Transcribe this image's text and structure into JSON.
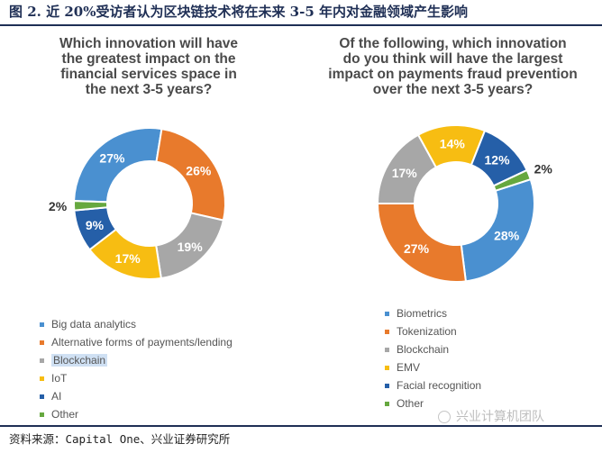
{
  "figure": {
    "title": "图 2.  近 20%受访者认为区块链技术将在未来 3-5 年内对金融领域产生影响",
    "source": "资料来源：Capital One、兴业证券研究所",
    "watermark": "兴业计算机团队"
  },
  "colors": {
    "title": "#1f2f55",
    "blue_light": "#4a90d0",
    "orange": "#e87a2c",
    "gray": "#a7a7a7",
    "yellow": "#f7bd12",
    "blue_dark": "#255fa8",
    "green": "#66a83f"
  },
  "chart_data": [
    {
      "type": "pie",
      "donut": true,
      "title_lines": [
        "Which innovation will have",
        "the greatest impact on the",
        "financial services space in",
        "the next 3-5 years?"
      ],
      "slices": [
        {
          "label": "Big data analytics",
          "value": 27,
          "display": "27%",
          "color": "#4a90d0",
          "label_color": "#ffffff",
          "highlight": false
        },
        {
          "label": "Alternative forms of payments/lending",
          "value": 26,
          "display": "26%",
          "color": "#e87a2c",
          "label_color": "#ffffff",
          "highlight": false
        },
        {
          "label": "Blockchain",
          "value": 19,
          "display": "19%",
          "color": "#a7a7a7",
          "label_color": "#ffffff",
          "highlight": true
        },
        {
          "label": "IoT",
          "value": 17,
          "display": "17%",
          "color": "#f7bd12",
          "label_color": "#ffffff",
          "highlight": false
        },
        {
          "label": "AI",
          "value": 9,
          "display": "9%",
          "color": "#255fa8",
          "label_color": "#ffffff",
          "highlight": false
        },
        {
          "label": "Other",
          "value": 2,
          "display": "2%",
          "color": "#66a83f",
          "label_color": "#333333",
          "highlight": false
        }
      ]
    },
    {
      "type": "pie",
      "donut": true,
      "title_lines": [
        "Of the following, which innovation",
        "do you think will have the largest",
        "impact on payments fraud prevention",
        "over the next 3-5 years?"
      ],
      "slices": [
        {
          "label": "Biometrics",
          "value": 28,
          "display": "28%",
          "color": "#4a90d0",
          "label_color": "#ffffff",
          "highlight": false
        },
        {
          "label": "Tokenization",
          "value": 27,
          "display": "27%",
          "color": "#e87a2c",
          "label_color": "#ffffff",
          "highlight": false
        },
        {
          "label": "Blockchain",
          "value": 17,
          "display": "17%",
          "color": "#a7a7a7",
          "label_color": "#ffffff",
          "highlight": false
        },
        {
          "label": "EMV",
          "value": 14,
          "display": "14%",
          "color": "#f7bd12",
          "label_color": "#ffffff",
          "highlight": false
        },
        {
          "label": "Facial recognition",
          "value": 12,
          "display": "12%",
          "color": "#255fa8",
          "label_color": "#ffffff",
          "highlight": false
        },
        {
          "label": "Other",
          "value": 2,
          "display": "2%",
          "color": "#66a83f",
          "label_color": "#333333",
          "highlight": false
        }
      ]
    }
  ]
}
